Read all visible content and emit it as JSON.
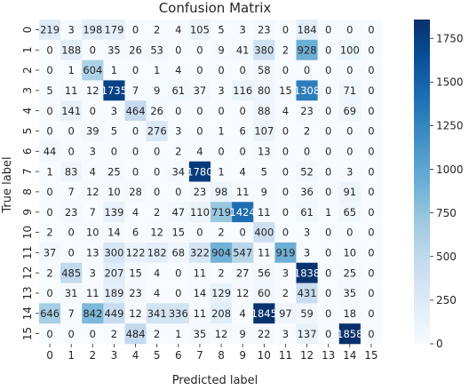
{
  "chart_data": {
    "type": "heatmap",
    "title": "Confusion Matrix",
    "xlabel": "Predicted label",
    "ylabel": "True label",
    "x_categories": [
      "0",
      "1",
      "2",
      "3",
      "4",
      "5",
      "6",
      "7",
      "8",
      "9",
      "10",
      "11",
      "12",
      "13",
      "14",
      "15"
    ],
    "y_categories": [
      "0",
      "1",
      "2",
      "3",
      "4",
      "5",
      "6",
      "7",
      "8",
      "9",
      "10",
      "11",
      "12",
      "13",
      "14",
      "15"
    ],
    "matrix": [
      [
        219,
        3,
        198,
        179,
        0,
        2,
        4,
        105,
        5,
        3,
        23,
        0,
        184,
        0,
        0,
        0
      ],
      [
        0,
        188,
        0,
        35,
        26,
        53,
        0,
        0,
        9,
        41,
        380,
        2,
        928,
        0,
        100,
        0
      ],
      [
        0,
        1,
        604,
        1,
        0,
        1,
        4,
        0,
        0,
        0,
        58,
        0,
        0,
        0,
        0,
        0
      ],
      [
        5,
        11,
        12,
        1735,
        7,
        9,
        61,
        37,
        3,
        116,
        80,
        15,
        1308,
        0,
        71,
        0
      ],
      [
        0,
        141,
        0,
        3,
        464,
        26,
        0,
        0,
        0,
        0,
        88,
        4,
        23,
        0,
        69,
        0
      ],
      [
        0,
        0,
        39,
        5,
        0,
        276,
        3,
        0,
        1,
        6,
        107,
        0,
        2,
        0,
        0,
        0
      ],
      [
        44,
        0,
        3,
        0,
        0,
        0,
        2,
        4,
        0,
        0,
        13,
        0,
        0,
        0,
        0,
        0
      ],
      [
        1,
        83,
        4,
        25,
        0,
        0,
        34,
        1780,
        1,
        4,
        5,
        0,
        52,
        0,
        3,
        0
      ],
      [
        0,
        7,
        12,
        10,
        28,
        0,
        0,
        23,
        98,
        11,
        9,
        0,
        36,
        0,
        91,
        0
      ],
      [
        0,
        23,
        7,
        139,
        4,
        2,
        47,
        110,
        719,
        1424,
        11,
        0,
        61,
        1,
        65,
        0
      ],
      [
        2,
        0,
        10,
        14,
        6,
        12,
        15,
        0,
        2,
        0,
        400,
        0,
        3,
        0,
        0,
        0
      ],
      [
        37,
        0,
        13,
        300,
        122,
        182,
        68,
        322,
        904,
        547,
        11,
        919,
        3,
        0,
        10,
        0
      ],
      [
        2,
        485,
        3,
        207,
        15,
        4,
        0,
        11,
        2,
        27,
        56,
        3,
        1838,
        0,
        25,
        0
      ],
      [
        0,
        31,
        11,
        189,
        23,
        4,
        0,
        14,
        129,
        12,
        60,
        2,
        431,
        0,
        35,
        0
      ],
      [
        646,
        7,
        842,
        449,
        12,
        341,
        336,
        11,
        208,
        4,
        1845,
        97,
        59,
        0,
        18,
        0
      ],
      [
        0,
        0,
        0,
        2,
        484,
        2,
        1,
        35,
        12,
        9,
        22,
        3,
        137,
        0,
        1858,
        0
      ]
    ],
    "colormap": "Blues",
    "color_low": "#f7fbff",
    "color_high": "#08306b",
    "vmin": 0,
    "vmax": 1858,
    "colorbar_ticks": [
      0,
      250,
      500,
      750,
      1000,
      1250,
      1500,
      1750
    ],
    "annotate": true
  }
}
